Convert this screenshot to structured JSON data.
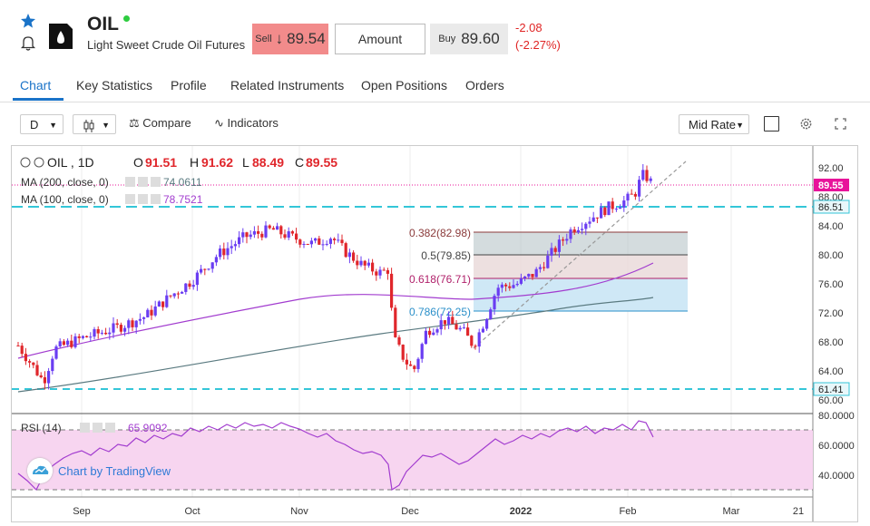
{
  "header": {
    "symbol": "OIL",
    "full_name": "Light Sweet Crude Oil Futures",
    "sell_label": "Sell",
    "sell_price": "89.54",
    "amount_placeholder": "Amount",
    "buy_label": "Buy",
    "buy_price": "89.60",
    "change": "-2.08",
    "change_pct": "(-2.27%)"
  },
  "tabs": [
    "Chart",
    "Key Statistics",
    "Profile",
    "Related Instruments",
    "Open Positions",
    "Orders"
  ],
  "toolbar": {
    "interval": "D",
    "compare_label": "Compare",
    "indicators_label": "Indicators",
    "price_mode": "Mid Rate"
  },
  "legend": {
    "symbol": "OIL , 1D",
    "o_label": "O",
    "o": "91.51",
    "h_label": "H",
    "h": "91.62",
    "l_label": "L",
    "l": "88.49",
    "c_label": "C",
    "c": "89.55",
    "ma200_label": "MA (200, close, 0)",
    "ma200": "74.0611",
    "ma100_label": "MA (100, close, 0)",
    "ma100": "78.7521",
    "rsi_label": "RSI (14)",
    "rsi": "65.9092"
  },
  "fib_labels": [
    "0.382(82.98)",
    "0.5(79.85)",
    "0.618(76.71)",
    "0.786(72.25)"
  ],
  "price_axis": [
    "92.00",
    "88.00",
    "84.00",
    "80.00",
    "76.00",
    "72.00",
    "68.00",
    "64.00",
    "60.00"
  ],
  "price_badges": {
    "last": "89.55",
    "level_high": "86.51",
    "level_low": "61.41"
  },
  "rsi_axis": [
    "80.0000",
    "60.0000",
    "40.0000"
  ],
  "time_axis": [
    "Sep",
    "Oct",
    "Nov",
    "Dec",
    "2022",
    "Feb",
    "Mar",
    "21"
  ],
  "watermark": "Chart by TradingView",
  "colors": {
    "up": "#6a3df2",
    "down": "#e0262b",
    "ma200": "#5a7a80",
    "ma100": "#a23ccf",
    "level_line": "#34c6d8",
    "last_badge": "#e8139a",
    "rsi": "#a23ccf",
    "rsi_fill": "#f7d5f0",
    "accent": "#1a73c8",
    "sell_bg": "#f28b8b"
  },
  "chart_data": {
    "type": "candlestick",
    "x_range": [
      "Aug 2021",
      "Mar 2022"
    ],
    "ylim": [
      60,
      94
    ],
    "ma200_range": [
      62.5,
      74.06
    ],
    "ma100_range": [
      67.5,
      78.75
    ],
    "levels": [
      86.51,
      61.41
    ],
    "fibonacci": [
      82.98,
      79.85,
      76.71,
      72.25
    ],
    "rsi_levels": [
      70,
      30
    ],
    "rsi_last": 65.9092
  }
}
